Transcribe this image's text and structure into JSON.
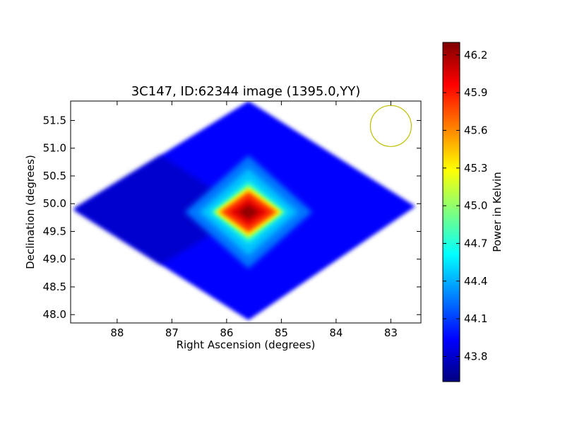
{
  "chart_data": {
    "type": "heatmap",
    "title": "3C147, ID:62344 image (1395.0,YY)",
    "xlabel": "Right Ascension (degrees)",
    "ylabel": "Declination (degrees)",
    "xlim": [
      88.85,
      82.45
    ],
    "ylim": [
      47.85,
      51.85
    ],
    "x_ticks": [
      88,
      87,
      86,
      85,
      84,
      83
    ],
    "y_ticks": [
      48.0,
      48.5,
      49.0,
      49.5,
      50.0,
      50.5,
      51.0,
      51.5
    ],
    "x_tick_labels": [
      "88",
      "87",
      "86",
      "85",
      "84",
      "83"
    ],
    "y_tick_labels": [
      "48.0",
      "48.5",
      "49.0",
      "49.5",
      "50.0",
      "50.5",
      "51.0",
      "51.5"
    ],
    "colorbar": {
      "label": "Power in Kelvin",
      "range": [
        43.6,
        46.3
      ],
      "ticks": [
        43.8,
        44.1,
        44.4,
        44.7,
        45.0,
        45.3,
        45.6,
        45.9,
        46.2
      ],
      "tick_labels": [
        "43.8",
        "44.1",
        "44.4",
        "44.7",
        "45.0",
        "45.3",
        "45.6",
        "45.9",
        "46.2"
      ]
    },
    "footprint_corners": [
      [
        88.8,
        49.9
      ],
      [
        85.6,
        51.85
      ],
      [
        82.55,
        49.95
      ],
      [
        85.6,
        47.9
      ]
    ],
    "background_level": 43.95,
    "low_corner_level": 43.7,
    "peak": {
      "ra": 85.6,
      "dec": 49.85,
      "value": 46.3
    },
    "beam_circle": {
      "ra": 83.0,
      "dec": 51.4,
      "color": "#bfbf00"
    },
    "grid": false,
    "legend": "none"
  }
}
